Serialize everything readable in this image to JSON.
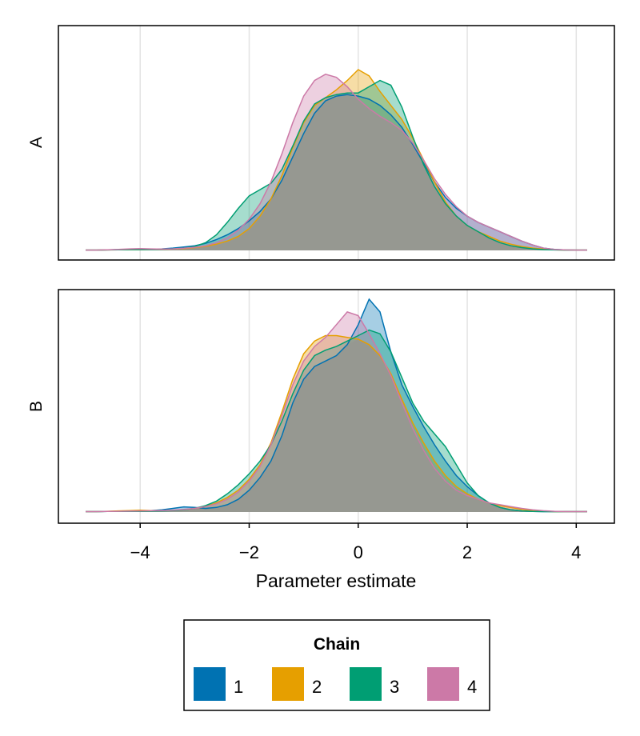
{
  "chart_data": [
    {
      "type": "area",
      "panel_label": "A",
      "xlim": [
        -5.5,
        4.7
      ],
      "grid_x": true,
      "x": [
        -5.0,
        -4.8,
        -4.6,
        -4.4,
        -4.2,
        -4.0,
        -3.8,
        -3.6,
        -3.4,
        -3.2,
        -3.0,
        -2.8,
        -2.6,
        -2.4,
        -2.2,
        -2.0,
        -1.8,
        -1.6,
        -1.4,
        -1.2,
        -1.0,
        -0.8,
        -0.6,
        -0.4,
        -0.2,
        0.0,
        0.2,
        0.4,
        0.6,
        0.8,
        1.0,
        1.2,
        1.4,
        1.6,
        1.8,
        2.0,
        2.2,
        2.4,
        2.6,
        2.8,
        3.0,
        3.2,
        3.4,
        3.6,
        3.8,
        4.0,
        4.2
      ],
      "series": [
        {
          "name": "1",
          "color": "#0072B2",
          "values": [
            0.002,
            0.002,
            0.003,
            0.005,
            0.006,
            0.006,
            0.008,
            0.01,
            0.015,
            0.022,
            0.03,
            0.045,
            0.07,
            0.1,
            0.14,
            0.19,
            0.25,
            0.33,
            0.45,
            0.6,
            0.75,
            0.88,
            0.96,
            0.99,
            1.0,
            0.99,
            0.97,
            0.93,
            0.87,
            0.79,
            0.68,
            0.56,
            0.44,
            0.34,
            0.27,
            0.22,
            0.18,
            0.15,
            0.12,
            0.09,
            0.06,
            0.035,
            0.015,
            0.006,
            0.003,
            0.002,
            0.002
          ]
        },
        {
          "name": "2",
          "color": "#E69F00",
          "values": [
            0.002,
            0.002,
            0.003,
            0.004,
            0.005,
            0.005,
            0.006,
            0.007,
            0.009,
            0.012,
            0.018,
            0.026,
            0.04,
            0.06,
            0.09,
            0.14,
            0.22,
            0.33,
            0.48,
            0.66,
            0.82,
            0.93,
            0.98,
            1.03,
            1.09,
            1.16,
            1.12,
            1.02,
            0.93,
            0.84,
            0.72,
            0.58,
            0.44,
            0.31,
            0.22,
            0.16,
            0.12,
            0.09,
            0.06,
            0.04,
            0.025,
            0.015,
            0.008,
            0.004,
            0.002,
            0.002,
            0.002
          ]
        },
        {
          "name": "3",
          "color": "#009E73",
          "values": [
            0.002,
            0.002,
            0.003,
            0.004,
            0.005,
            0.005,
            0.006,
            0.007,
            0.01,
            0.015,
            0.025,
            0.05,
            0.1,
            0.18,
            0.27,
            0.35,
            0.39,
            0.43,
            0.52,
            0.67,
            0.83,
            0.94,
            0.98,
            1.0,
            1.01,
            1.01,
            1.05,
            1.09,
            1.06,
            0.92,
            0.73,
            0.55,
            0.41,
            0.3,
            0.22,
            0.16,
            0.12,
            0.08,
            0.05,
            0.03,
            0.018,
            0.01,
            0.005,
            0.003,
            0.002,
            0.002,
            0.002
          ]
        },
        {
          "name": "4",
          "color": "#CC79A7",
          "values": [
            0.002,
            0.002,
            0.004,
            0.006,
            0.01,
            0.012,
            0.01,
            0.008,
            0.01,
            0.014,
            0.02,
            0.03,
            0.05,
            0.08,
            0.13,
            0.2,
            0.3,
            0.44,
            0.62,
            0.82,
            0.99,
            1.09,
            1.13,
            1.11,
            1.05,
            0.97,
            0.91,
            0.86,
            0.82,
            0.77,
            0.69,
            0.58,
            0.46,
            0.36,
            0.28,
            0.22,
            0.18,
            0.15,
            0.12,
            0.09,
            0.06,
            0.035,
            0.015,
            0.006,
            0.003,
            0.002,
            0.002
          ]
        }
      ]
    },
    {
      "type": "area",
      "panel_label": "B",
      "xlim": [
        -5.5,
        4.7
      ],
      "xlabel": "Parameter estimate",
      "xticks": [
        "−4",
        "−2",
        "0",
        "2",
        "4"
      ],
      "xtick_values": [
        -4,
        -2,
        0,
        2,
        4
      ],
      "grid_x": true,
      "x": [
        -5.0,
        -4.8,
        -4.6,
        -4.4,
        -4.2,
        -4.0,
        -3.8,
        -3.6,
        -3.4,
        -3.2,
        -3.0,
        -2.8,
        -2.6,
        -2.4,
        -2.2,
        -2.0,
        -1.8,
        -1.6,
        -1.4,
        -1.2,
        -1.0,
        -0.8,
        -0.6,
        -0.4,
        -0.2,
        0.0,
        0.2,
        0.4,
        0.6,
        0.8,
        1.0,
        1.2,
        1.4,
        1.6,
        1.8,
        2.0,
        2.2,
        2.4,
        2.6,
        2.8,
        3.0,
        3.2,
        3.4,
        3.6,
        3.8,
        4.0,
        4.2
      ],
      "series": [
        {
          "name": "1",
          "color": "#0072B2",
          "values": [
            0.002,
            0.002,
            0.003,
            0.004,
            0.005,
            0.006,
            0.008,
            0.012,
            0.02,
            0.028,
            0.025,
            0.02,
            0.025,
            0.04,
            0.07,
            0.12,
            0.19,
            0.28,
            0.42,
            0.6,
            0.73,
            0.8,
            0.83,
            0.86,
            0.92,
            1.03,
            1.17,
            1.1,
            0.88,
            0.7,
            0.58,
            0.47,
            0.37,
            0.28,
            0.2,
            0.14,
            0.09,
            0.05,
            0.025,
            0.012,
            0.006,
            0.003,
            0.002,
            0.002,
            0.002,
            0.002,
            0.002
          ]
        },
        {
          "name": "2",
          "color": "#E69F00",
          "values": [
            0.002,
            0.002,
            0.004,
            0.006,
            0.008,
            0.01,
            0.008,
            0.007,
            0.009,
            0.012,
            0.02,
            0.03,
            0.05,
            0.08,
            0.12,
            0.18,
            0.26,
            0.38,
            0.55,
            0.73,
            0.87,
            0.94,
            0.97,
            0.97,
            0.96,
            0.95,
            0.92,
            0.86,
            0.76,
            0.62,
            0.49,
            0.38,
            0.28,
            0.2,
            0.14,
            0.1,
            0.07,
            0.05,
            0.035,
            0.025,
            0.015,
            0.008,
            0.004,
            0.002,
            0.002,
            0.002,
            0.002
          ]
        },
        {
          "name": "3",
          "color": "#009E73",
          "values": [
            0.002,
            0.002,
            0.003,
            0.003,
            0.004,
            0.004,
            0.005,
            0.006,
            0.008,
            0.012,
            0.02,
            0.035,
            0.06,
            0.1,
            0.15,
            0.21,
            0.28,
            0.37,
            0.5,
            0.65,
            0.78,
            0.86,
            0.89,
            0.91,
            0.94,
            0.97,
            1.0,
            0.98,
            0.88,
            0.74,
            0.6,
            0.5,
            0.43,
            0.36,
            0.26,
            0.16,
            0.09,
            0.05,
            0.025,
            0.012,
            0.006,
            0.003,
            0.002,
            0.002,
            0.002,
            0.002,
            0.002
          ]
        },
        {
          "name": "4",
          "color": "#CC79A7",
          "values": [
            0.002,
            0.002,
            0.003,
            0.004,
            0.005,
            0.006,
            0.007,
            0.008,
            0.01,
            0.014,
            0.02,
            0.03,
            0.045,
            0.07,
            0.11,
            0.17,
            0.25,
            0.37,
            0.53,
            0.7,
            0.83,
            0.91,
            0.96,
            1.03,
            1.1,
            1.08,
            0.98,
            0.87,
            0.75,
            0.6,
            0.46,
            0.34,
            0.24,
            0.17,
            0.12,
            0.09,
            0.07,
            0.05,
            0.04,
            0.03,
            0.02,
            0.012,
            0.007,
            0.004,
            0.002,
            0.002,
            0.002
          ]
        }
      ]
    }
  ],
  "overlap_fill": "#969891",
  "legend": {
    "title": "Chain",
    "placement": "bottom-center",
    "items": [
      {
        "label": "1",
        "color": "#0072B2"
      },
      {
        "label": "2",
        "color": "#E69F00"
      },
      {
        "label": "3",
        "color": "#009E73"
      },
      {
        "label": "4",
        "color": "#CC79A7"
      }
    ]
  }
}
